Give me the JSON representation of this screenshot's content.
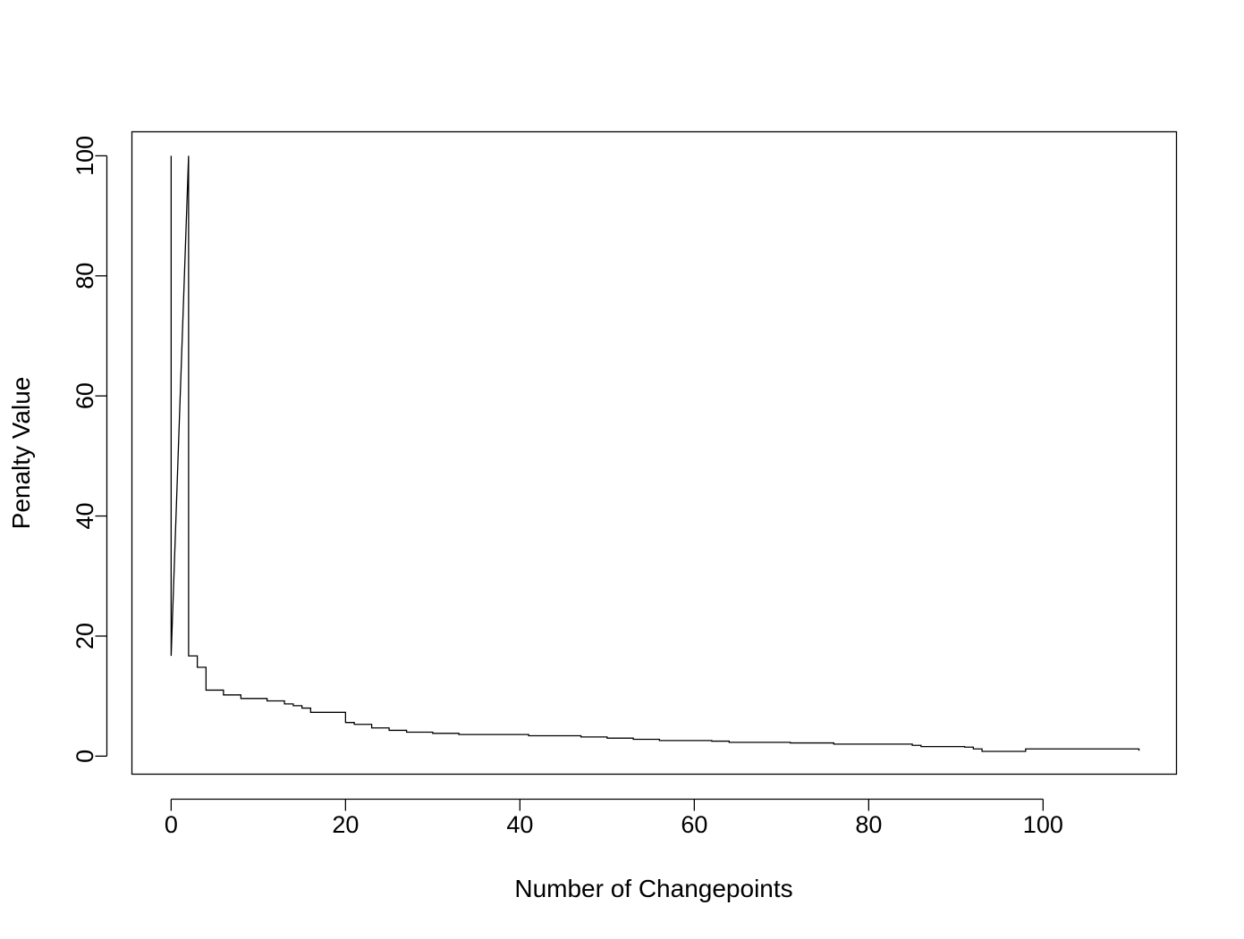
{
  "chart_data": {
    "type": "line",
    "step": true,
    "xlabel": "Number of Changepoints",
    "ylabel": "Penalty Value",
    "xlim": [
      -4.5,
      115.3
    ],
    "ylim": [
      -3.0,
      104.0
    ],
    "x_ticks": [
      0,
      20,
      40,
      60,
      80,
      100
    ],
    "y_ticks": [
      0,
      20,
      40,
      60,
      80,
      100
    ],
    "grid": false,
    "color": "#000000",
    "series": [
      {
        "x": [
          0,
          2,
          3,
          4,
          6,
          8,
          11,
          13,
          14,
          15,
          16,
          20,
          21,
          23,
          25,
          27,
          30,
          33,
          41,
          47,
          50,
          53,
          56,
          62,
          64,
          71,
          76,
          85,
          86,
          91,
          92,
          93,
          98,
          111
        ],
        "y": [
          100,
          16.7,
          14.8,
          11.0,
          10.2,
          9.6,
          9.2,
          8.7,
          8.4,
          8.0,
          7.3,
          5.6,
          5.3,
          4.7,
          4.3,
          4.0,
          3.8,
          3.6,
          3.4,
          3.2,
          3.0,
          2.8,
          2.6,
          2.5,
          2.3,
          2.2,
          2.0,
          1.8,
          1.6,
          1.5,
          1.2,
          0.8,
          1.2,
          0.9
        ]
      }
    ]
  }
}
